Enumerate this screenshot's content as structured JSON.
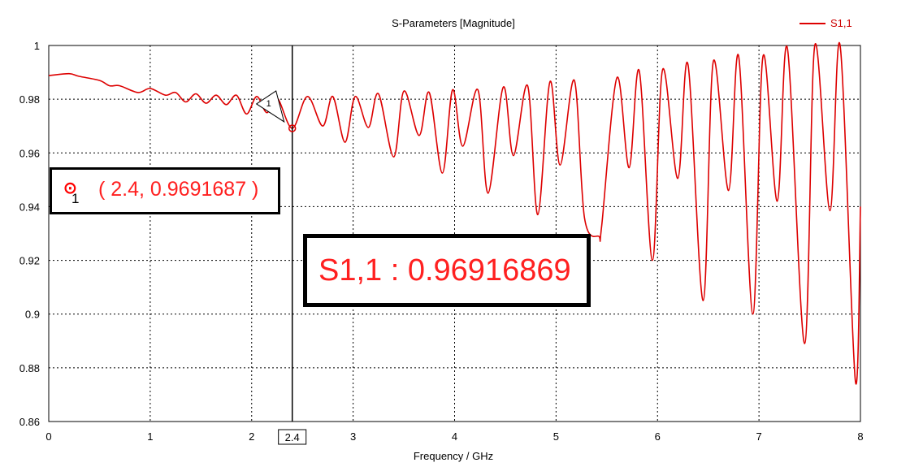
{
  "chart_data": {
    "type": "line",
    "title": "S-Parameters [Magnitude]",
    "xlabel": "Frequency / GHz",
    "ylabel": "",
    "xlim": [
      0,
      8
    ],
    "ylim": [
      0.86,
      1
    ],
    "xticks": [
      "0",
      "1",
      "2",
      "3",
      "4",
      "5",
      "6",
      "7",
      "8"
    ],
    "yticks": [
      "0.86",
      "0.88",
      "0.9",
      "0.92",
      "0.94",
      "0.96",
      "0.98",
      "1"
    ],
    "grid": true,
    "legend": "top-right",
    "series": [
      {
        "name": "S1,1",
        "color": "#dd0000",
        "x": [
          0,
          0.2,
          0.3,
          0.5,
          0.6,
          0.7,
          0.88,
          1.0,
          1.15,
          1.25,
          1.35,
          1.45,
          1.55,
          1.65,
          1.75,
          1.85,
          1.95,
          2.05,
          2.15,
          2.25,
          2.4,
          2.55,
          2.7,
          2.8,
          2.92,
          3.02,
          3.15,
          3.25,
          3.4,
          3.5,
          3.65,
          3.75,
          3.88,
          3.98,
          4.08,
          4.23,
          4.33,
          4.48,
          4.58,
          4.72,
          4.82,
          4.94,
          5.04,
          5.18,
          5.28,
          5.42,
          5.45,
          5.6,
          5.72,
          5.82,
          5.95,
          6.05,
          6.2,
          6.3,
          6.45,
          6.55,
          6.7,
          6.8,
          6.94,
          7.04,
          7.18,
          7.28,
          7.45,
          7.55,
          7.7,
          7.8,
          7.95,
          8.0
        ],
        "y": [
          0.9888,
          0.9895,
          0.9885,
          0.987,
          0.985,
          0.985,
          0.9825,
          0.984,
          0.9815,
          0.9825,
          0.979,
          0.982,
          0.9785,
          0.9815,
          0.978,
          0.9815,
          0.9745,
          0.981,
          0.975,
          0.9805,
          0.96916869,
          0.981,
          0.97,
          0.981,
          0.964,
          0.981,
          0.9695,
          0.982,
          0.9585,
          0.983,
          0.9665,
          0.9825,
          0.9525,
          0.9835,
          0.9625,
          0.9835,
          0.945,
          0.9845,
          0.959,
          0.985,
          0.937,
          0.9865,
          0.9555,
          0.987,
          0.936,
          0.929,
          0.933,
          0.988,
          0.9545,
          0.9905,
          0.92,
          0.991,
          0.9505,
          0.993,
          0.905,
          0.994,
          0.946,
          0.996,
          0.9,
          0.996,
          0.942,
          0.999,
          0.889,
          1.0,
          0.9385,
          1.0,
          0.875,
          0.94
        ]
      }
    ],
    "marker": {
      "id": "1",
      "x": 2.4,
      "y": 0.9691687,
      "x_label": "2.4",
      "label_text": "( 2.4, 0.9691687 )",
      "readout_text": "S1,1 : 0.96916869"
    }
  }
}
